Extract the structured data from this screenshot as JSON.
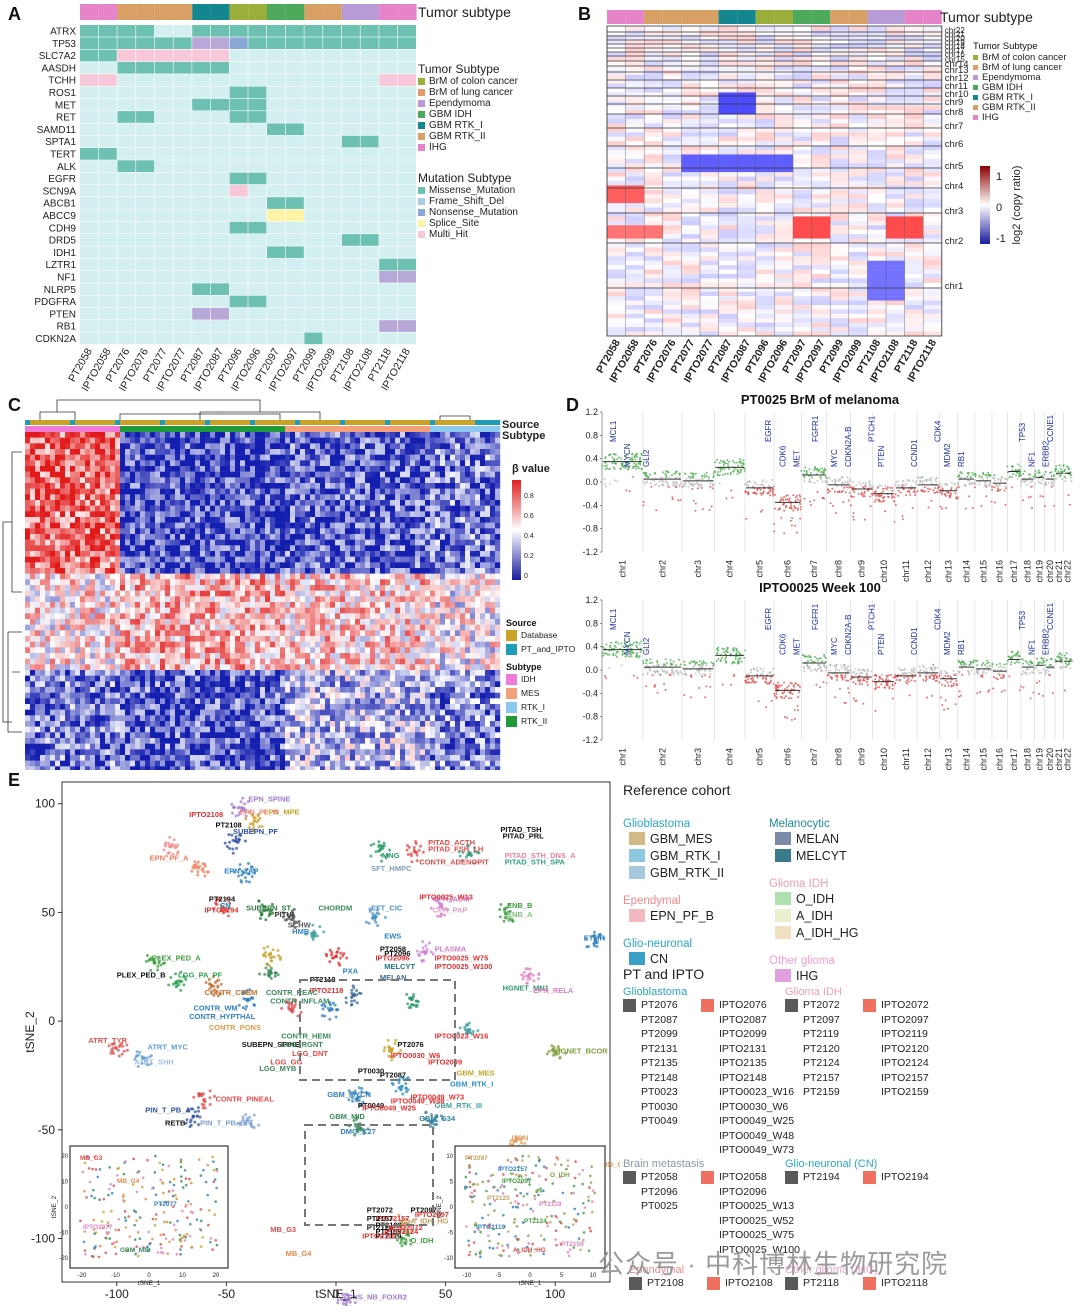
{
  "panels": {
    "A": {
      "letter": "A",
      "track_label": "Tumor subtype",
      "genes": [
        "ATRX",
        "TP53",
        "SLC7A2",
        "AASDH",
        "TCHH",
        "ROS1",
        "MET",
        "RET",
        "SAMD11",
        "SPTA1",
        "TERT",
        "ALK",
        "EGFR",
        "SCN9A",
        "ABCB1",
        "ABCC9",
        "CDH9",
        "DRD5",
        "IDH1",
        "LZTR1",
        "NF1",
        "NLRP5",
        "PDGFRA",
        "PTEN",
        "RB1",
        "CDKN2A"
      ],
      "samples": [
        "PT2058",
        "IPTO2058",
        "PT2076",
        "IPTO2076",
        "PT2077",
        "IPTO2077",
        "PT2087",
        "IPTO2087",
        "PT2096",
        "IPTO2096",
        "PT2097",
        "IPTO2097",
        "PT2099",
        "IPTO2099",
        "PT2108",
        "IPTO2108",
        "PT2118",
        "IPTO2118"
      ],
      "tumor_legend_title": "Tumor Subtype",
      "tumor_legend": [
        {
          "label": "BrM of colon cancer",
          "color": "#9aae3c"
        },
        {
          "label": "BrM of lung cancer",
          "color": "#e39a6c"
        },
        {
          "label": "Ependymoma",
          "color": "#b89ad6"
        },
        {
          "label": "GBM IDH",
          "color": "#4daa5c"
        },
        {
          "label": "GBM RTK_I",
          "color": "#14868f"
        },
        {
          "label": "GBM RTK_II",
          "color": "#d8a064"
        },
        {
          "label": "IHG",
          "color": "#e784c9"
        }
      ],
      "mutation_legend_title": "Mutation Subtype",
      "mutation_legend": [
        {
          "label": "Missense_Mutation",
          "color": "#6cc1b0"
        },
        {
          "label": "Frame_Shift_Del",
          "color": "#a9cde8"
        },
        {
          "label": "Nonsense_Mutation",
          "color": "#8aa8d6"
        },
        {
          "label": "Splice_Site",
          "color": "#fff3a6"
        },
        {
          "label": "Multi_Hit",
          "color": "#f8c8d8"
        }
      ]
    },
    "B": {
      "letter": "B",
      "track_label": "Tumor subtype",
      "chromosomes": [
        "chr22",
        "chr21",
        "chr20",
        "chr19",
        "chr18",
        "chr17",
        "chr16",
        "chr15",
        "chr14",
        "chr13",
        "chr12",
        "chr11",
        "chr10",
        "chr9",
        "chr8",
        "chr7",
        "chr6",
        "chr5",
        "chr4",
        "chr3",
        "chr2",
        "chr1"
      ],
      "samples": [
        "PT2058",
        "IPTO2058",
        "PT2076",
        "IPTO2076",
        "PT2077",
        "IPTO2077",
        "PT2087",
        "IPTO2087",
        "PT2096",
        "IPTO2096",
        "PT2097",
        "IPTO2097",
        "PT2099",
        "IPTO2099",
        "PT2108",
        "IPTO2108",
        "PT2118",
        "IPTO2118"
      ],
      "legend_title": "Tumor Subtype",
      "legend": [
        "BrM of colon cancer",
        "BrM of lung cancer",
        "Ependymoma",
        "GBM IDH",
        "GBM RTK_I",
        "GBM RTK_II",
        "IHG"
      ],
      "colorbar_title": "log2 (copy ratio)",
      "colorbar_ticks": [
        "1",
        "0",
        "-1"
      ]
    },
    "C": {
      "letter": "C",
      "source_label": "Source",
      "subtype_label": "Subtype",
      "beta_title": "β value",
      "beta_ticks": [
        "0.8",
        "0.6",
        "0.4",
        "0.2",
        "0"
      ],
      "source_legend_title": "Source",
      "source_legend": [
        {
          "label": "Database",
          "color": "#c9a227"
        },
        {
          "label": "PT_and_IPTO",
          "color": "#1f9db8"
        }
      ],
      "subtype_legend_title": "Subtype",
      "subtype_legend": [
        {
          "label": "IDH",
          "color": "#f07ad8"
        },
        {
          "label": "MES",
          "color": "#f4a07a"
        },
        {
          "label": "RTK_I",
          "color": "#8cc8ee"
        },
        {
          "label": "RTK_II",
          "color": "#1f9a3a"
        }
      ]
    },
    "D": {
      "letter": "D",
      "top_title": "PT0025 BrM of melanoma",
      "bottom_title": "IPTO0025 Week 100",
      "yticks": [
        "1.2",
        "0.8",
        "0.4",
        "0.0",
        "-0.4",
        "-0.8",
        "-1.2"
      ],
      "chromosomes": [
        "chr1",
        "chr2",
        "chr3",
        "chr4",
        "chr5",
        "chr6",
        "chr7",
        "chr8",
        "chr9",
        "chr10",
        "chr11",
        "chr12",
        "chr13",
        "chr14",
        "chr15",
        "chr16",
        "chr17",
        "chr18",
        "chr19",
        "chr20",
        "chr21",
        "chr22"
      ],
      "top_genes": [
        "MCL1",
        "MYCN",
        "GLI2",
        "EGFR",
        "CDK6",
        "MET",
        "FGFR1",
        "MYC",
        "CDKN2A-B",
        "PTCH1",
        "PTEN",
        "CCND1",
        "CDK4",
        "MDM2",
        "RB1",
        "TP53",
        "NF1",
        "ERBB2",
        "CCNE1"
      ],
      "bottom_genes": [
        "MCL1",
        "MYCN",
        "GLI2",
        "EGFR",
        "CDK6",
        "MET",
        "FGFR1",
        "MYC",
        "CDKN2A-B",
        "PTCH1",
        "PTEN",
        "CCND1",
        "CDK4",
        "MDM2",
        "RB1",
        "TP53",
        "NF1",
        "ERBB2",
        "CCNE1"
      ]
    },
    "E": {
      "letter": "E",
      "xlabel": "tSNE_1",
      "ylabel": "tSNE_2",
      "xticks": [
        "-100",
        "-50",
        "0",
        "50",
        "100"
      ],
      "yticks": [
        "100",
        "50",
        "0",
        "-50",
        "-100"
      ],
      "cluster_labels": [
        {
          "text": "EPN_SPINE",
          "color": "#a07ad0"
        },
        {
          "text": "EPN_MPE",
          "color": "#c9a227"
        },
        {
          "text": "IPTO2108",
          "color": "#e03030"
        },
        {
          "text": "EPN_PF_B",
          "color": "#f08a8a"
        },
        {
          "text": "PT2108",
          "color": "#111111"
        },
        {
          "text": "SUBEPN_PF",
          "color": "#3050a0"
        },
        {
          "text": "EPN_PF_A",
          "color": "#f07a5a"
        },
        {
          "text": "EPN_YAP",
          "color": "#3080c0"
        },
        {
          "text": "PT2194",
          "color": "#111111"
        },
        {
          "text": "CN",
          "color": "#1080a0"
        },
        {
          "text": "IPTO2194",
          "color": "#e03030"
        },
        {
          "text": "SUBEPN_ST",
          "color": "#2a7a3a"
        },
        {
          "text": "PITUI",
          "color": "#333333"
        },
        {
          "text": "SCHW",
          "color": "#555555"
        },
        {
          "text": "CHORDM",
          "color": "#3a8a5a"
        },
        {
          "text": "EFT_CIC",
          "color": "#4a90c0"
        },
        {
          "text": "CPH_ADM",
          "color": "#d080d0"
        },
        {
          "text": "CPH_PAP",
          "color": "#e0a0c0"
        },
        {
          "text": "ENB_B",
          "color": "#40a040"
        },
        {
          "text": "ENB_A",
          "color": "#80c080"
        },
        {
          "text": "ETMR",
          "color": "#3080c0"
        },
        {
          "text": "MNG",
          "color": "#2a9a6a"
        },
        {
          "text": "PITAD_TSH",
          "color": "#111111"
        },
        {
          "text": "PITAD_PRL",
          "color": "#111111"
        },
        {
          "text": "PITAD_ACTH",
          "color": "#e04a4a"
        },
        {
          "text": "PITAD_FSH_LH",
          "color": "#e04a4a"
        },
        {
          "text": "PITAD_STH_DNS_A",
          "color": "#f080a0"
        },
        {
          "text": "PITAD_STH_SPA",
          "color": "#30a080"
        },
        {
          "text": "CONTR_ADENOPIT",
          "color": "#e04a4a"
        },
        {
          "text": "SFT_HMPC",
          "color": "#80a0c0"
        },
        {
          "text": "PLEX_PED_A",
          "color": "#40a040"
        },
        {
          "text": "PLEX_PED_B",
          "color": "#111111"
        },
        {
          "text": "ATRT_TYR",
          "color": "#e05050"
        },
        {
          "text": "ATRT_MYC",
          "color": "#60a0d0"
        },
        {
          "text": "ATRT_SHH",
          "color": "#a0c0e0"
        },
        {
          "text": "LGG_PA_PF",
          "color": "#30a050"
        },
        {
          "text": "CONTR_CEBM",
          "color": "#c07030"
        },
        {
          "text": "CONTR_WM",
          "color": "#3080c0"
        },
        {
          "text": "CONTR_HYPTHAL",
          "color": "#3080c0"
        },
        {
          "text": "CONTR_PONS",
          "color": "#e09a50"
        },
        {
          "text": "SUBEPN_SPINE",
          "color": "#111111"
        },
        {
          "text": "CONTR_PINEAL",
          "color": "#e04a4a"
        },
        {
          "text": "PIN_T_PB_A",
          "color": "#3050a0"
        },
        {
          "text": "RETB",
          "color": "#111111"
        },
        {
          "text": "PIN_T_PB_B",
          "color": "#80a0d0"
        },
        {
          "text": "MB_WNT",
          "color": "#d0c080"
        },
        {
          "text": "PT2096",
          "color": "#111111"
        },
        {
          "text": "PT2058",
          "color": "#111111"
        },
        {
          "text": "IPTO2096",
          "color": "#e03030"
        },
        {
          "text": "PLASMA",
          "color": "#d080d0"
        },
        {
          "text": "IPTO0025_W75",
          "color": "#e03030"
        },
        {
          "text": "IPTO0025_W100",
          "color": "#e03030"
        },
        {
          "text": "MELCYT",
          "color": "#1f7a8a"
        },
        {
          "text": "MELAN",
          "color": "#3a6a9a"
        },
        {
          "text": "PT2118",
          "color": "#111111"
        },
        {
          "text": "IPTO2118",
          "color": "#e03030"
        },
        {
          "text": "PXA",
          "color": "#3080c0"
        },
        {
          "text": "HGNET_MN1",
          "color": "#2a9a6a"
        },
        {
          "text": "EPN_RELA",
          "color": "#e080c0"
        },
        {
          "text": "HGNET_BCOR",
          "color": "#80a040"
        },
        {
          "text": "GBM_MES",
          "color": "#c9a227"
        },
        {
          "text": "GBM_RTK_I",
          "color": "#2a90c0"
        },
        {
          "text": "GBM_RTK_III",
          "color": "#40a0a0"
        },
        {
          "text": "GBM_G34",
          "color": "#3080a0"
        },
        {
          "text": "GBM_MYCN",
          "color": "#3080c0"
        },
        {
          "text": "GBM_MID",
          "color": "#3a8a5a"
        },
        {
          "text": "DMG_K27",
          "color": "#3080c0"
        },
        {
          "text": "LIPN",
          "color": "#e0a060"
        },
        {
          "text": "MB_SHH_INF",
          "color": "#e0a060"
        },
        {
          "text": "MB_SHH_CHL_AD",
          "color": "#e0a060"
        },
        {
          "text": "MB_G3",
          "color": "#e04a4a"
        },
        {
          "text": "MB_G4",
          "color": "#e08a4a"
        },
        {
          "text": "CNS_NB_FOXR2",
          "color": "#a07ad0"
        },
        {
          "text": "O_IDH",
          "color": "#40a040"
        },
        {
          "text": "A_IDH_HG",
          "color": "#c0a060"
        },
        {
          "text": "PT2097",
          "color": "#111111"
        },
        {
          "text": "IPTO2097",
          "color": "#e03030"
        },
        {
          "text": "PT2072",
          "color": "#111111"
        },
        {
          "text": "IPTO2157",
          "color": "#e03030"
        },
        {
          "text": "PT2157",
          "color": "#111111"
        },
        {
          "text": "PT2120",
          "color": "#111111"
        },
        {
          "text": "PT2159",
          "color": "#111111"
        },
        {
          "text": "PT2119",
          "color": "#111111"
        },
        {
          "text": "IPTO2124",
          "color": "#e03030"
        },
        {
          "text": "PT2124",
          "color": "#111111"
        },
        {
          "text": "IPTO2072",
          "color": "#e03030"
        },
        {
          "text": "IPTO2119",
          "color": "#e03030"
        },
        {
          "text": "PT0030",
          "color": "#111111"
        },
        {
          "text": "PT2076",
          "color": "#111111"
        },
        {
          "text": "IPTO0023_W16",
          "color": "#e03030"
        },
        {
          "text": "IPTO0030_W6",
          "color": "#e03030"
        },
        {
          "text": "IPTO2099",
          "color": "#e03030"
        },
        {
          "text": "PT2087",
          "color": "#111111"
        },
        {
          "text": "PT0049",
          "color": "#111111"
        },
        {
          "text": "IPTO0049_W73",
          "color": "#e03030"
        },
        {
          "text": "IPTO0049_W48",
          "color": "#e03030"
        },
        {
          "text": "IPTO0049_W25",
          "color": "#e03030"
        },
        {
          "text": "CONTR_REAC",
          "color": "#3a8a5a"
        },
        {
          "text": "CONTR_INFLAM",
          "color": "#3a8a5a"
        },
        {
          "text": "CONTR_HEMI",
          "color": "#3a8a5a"
        },
        {
          "text": "LGG_RGNT",
          "color": "#3a8a5a"
        },
        {
          "text": "LGG_DNT",
          "color": "#e04a4a"
        },
        {
          "text": "LGG_GG",
          "color": "#e04a4a"
        },
        {
          "text": "LGG_MYB",
          "color": "#3a8a5a"
        },
        {
          "text": "HMB",
          "color": "#3080c0"
        },
        {
          "text": "EWS",
          "color": "#3080c0"
        },
        {
          "text": "IPTO0025_W13",
          "color": "#e03030"
        }
      ],
      "reference_title": "Reference cohort",
      "reference_groups": [
        {
          "title": "Glioblastoma",
          "title_color": "#2aa7c4",
          "items": [
            {
              "label": "GBM_MES",
              "color": "#d2b985"
            },
            {
              "label": "GBM_RTK_I",
              "color": "#8cc8e0"
            },
            {
              "label": "GBM_RTK_II",
              "color": "#a8c8e0"
            }
          ]
        },
        {
          "title": "Melanocytic",
          "title_color": "#1f8a9a",
          "items": [
            {
              "label": "MELAN",
              "color": "#7a8aa8"
            },
            {
              "label": "MELCYT",
              "color": "#3a7a8a"
            }
          ]
        },
        {
          "title": "Ependymal",
          "title_color": "#f08a8a",
          "items": [
            {
              "label": "EPN_PF_B",
              "color": "#f4b8c0"
            }
          ]
        },
        {
          "title": "Glioma IDH",
          "title_color": "#f0a0b0",
          "items": [
            {
              "label": "O_IDH",
              "color": "#b0e0b0"
            },
            {
              "label": "A_IDH",
              "color": "#e8f0d0"
            },
            {
              "label": "A_IDH_HG",
              "color": "#f0e0c0"
            }
          ]
        },
        {
          "title": "Glio-neuronal",
          "title_color": "#2aa7c4",
          "items": [
            {
              "label": "CN",
              "color": "#3aa0c8"
            }
          ]
        },
        {
          "title": "Other glioma",
          "title_color": "#f0a0d0",
          "items": [
            {
              "label": "IHG",
              "color": "#e0a0e0"
            }
          ]
        }
      ],
      "pt_title": "PT and IPTO",
      "pt_groups": {
        "glioblastoma": {
          "title": "Glioblastoma",
          "title_color": "#2aa7c4",
          "pt": [
            "PT2076",
            "PT2087",
            "PT2099",
            "PT2131",
            "PT2135",
            "PT2148",
            "PT0023",
            "PT0030",
            "PT0049"
          ],
          "ipto": [
            "IPTO2076",
            "IPTO2087",
            "IPTO2099",
            "IPTO2131",
            "IPTO2135",
            "IPTO2148",
            "IPTO0023_W16",
            "IPTO0030_W6",
            "IPTO0049_W25",
            "IPTO0049_W48",
            "IPTO0049_W73"
          ]
        },
        "glioma_idh": {
          "title": "Glioma IDH",
          "title_color": "#f0a0b0",
          "pt": [
            "PT2072",
            "PT2097",
            "PT2119",
            "PT2120",
            "PT2124",
            "PT2157",
            "PT2159"
          ],
          "ipto": [
            "IPTO2072",
            "IPTO2097",
            "IPTO2119",
            "IPTO2120",
            "IPTO2124",
            "IPTO2157",
            "IPTO2159"
          ]
        },
        "brain_met": {
          "title": "Brain metastasis",
          "title_color": "#8a9aa8",
          "pt": [
            "PT2058",
            "PT2096",
            "PT0025"
          ],
          "ipto": [
            "IPTO2058",
            "IPTO2096",
            "IPTO0025_W13",
            "IPTO0025_W52",
            "IPTO0025_W75",
            "IPTO0025_W100"
          ]
        },
        "glio_neuronal": {
          "title": "Glio-neuronal (CN)",
          "title_color": "#2aa7c4",
          "pt": [
            "PT2194"
          ],
          "ipto": [
            "IPTO2194"
          ]
        },
        "ependymal": {
          "title": "Ependymal",
          "title_color": "#f08a8a",
          "pt": [
            "PT2108"
          ],
          "ipto": [
            "IPTO2108"
          ]
        },
        "other_glioma": {
          "title": "Other glioma (IHG)",
          "title_color": "#f0a0d0",
          "pt": [
            "PT2118"
          ],
          "ipto": [
            "IPTO2118"
          ]
        }
      },
      "pt_swatch_color": "#5a5a5a",
      "ipto_swatch_color": "#f07060",
      "inset_left": {
        "xticks": [
          "-20",
          "-10",
          "0",
          "10",
          "20"
        ],
        "yticks": [
          "20",
          "10",
          "0",
          "-10",
          "-20"
        ],
        "xlabel": "tSNE_1",
        "ylabel": "tSNE_2",
        "labels": [
          "MB_G3",
          "MB_G4",
          "PT2077",
          "IPTO2077",
          "GBM_MID"
        ]
      },
      "inset_right": {
        "xticks": [
          "-10",
          "-5",
          "0",
          "5",
          "10"
        ],
        "yticks": [
          "10",
          "5",
          "0",
          "-5",
          "-10"
        ],
        "xlabel": "tSNE_1",
        "ylabel": "tSNE_2",
        "labels": [
          "PT2097",
          "IPTO2097",
          "PT2119",
          "IPTO2119",
          "A_IDH_HG",
          "O_IDH",
          "PT2120",
          "PT2124",
          "PT2159",
          "IPTO2157"
        ]
      }
    }
  },
  "watermark": "公众号 · 中科博林生物研究院"
}
